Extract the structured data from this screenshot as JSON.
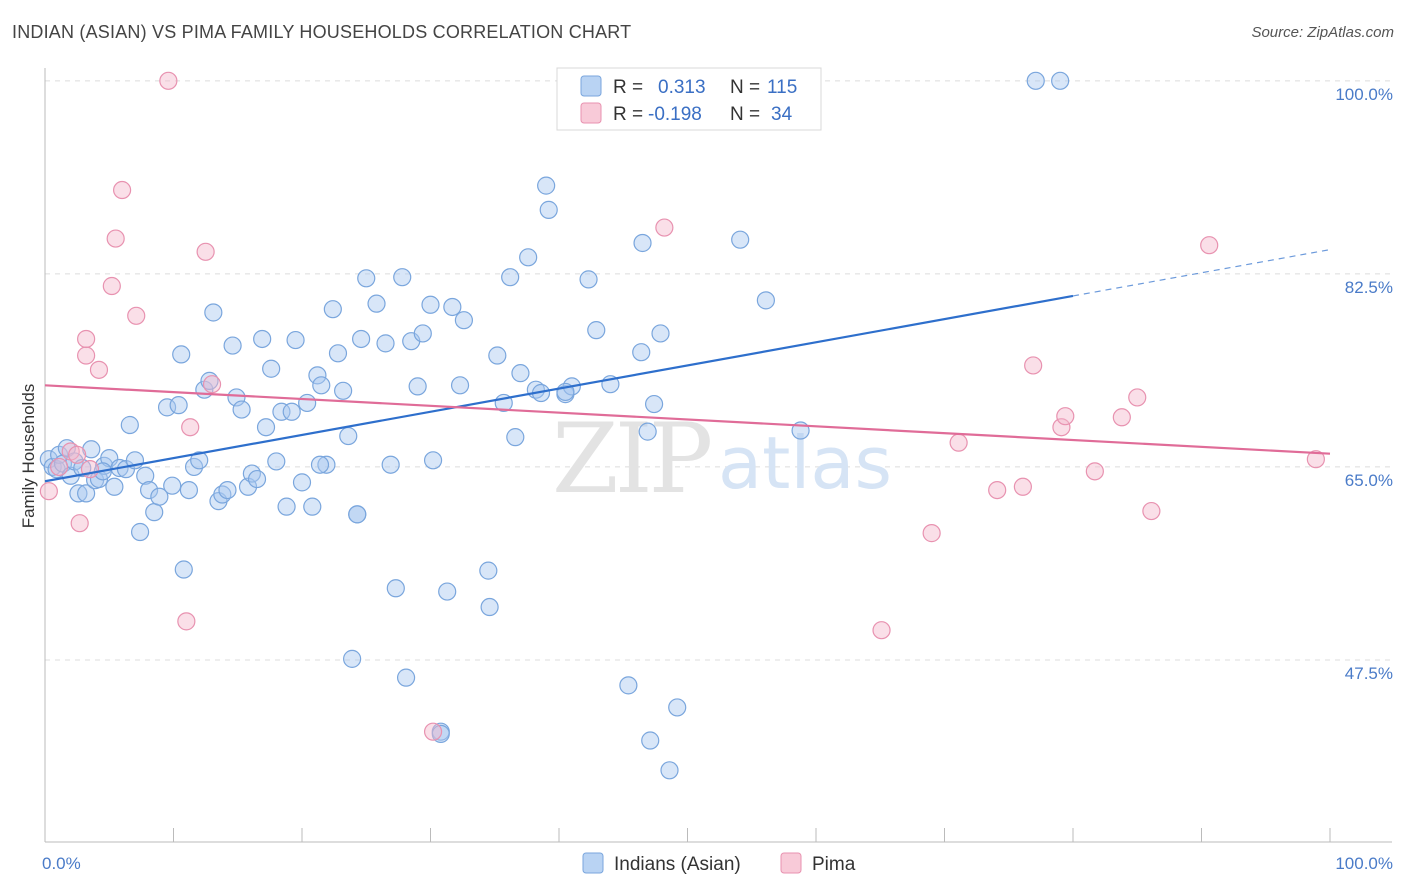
{
  "header": {
    "title": "INDIAN (ASIAN) VS PIMA FAMILY HOUSEHOLDS CORRELATION CHART",
    "source": "Source: ZipAtlas.com"
  },
  "watermark": {
    "zip": "ZIP",
    "atlas": "atlas"
  },
  "legend": {
    "r_label": "R =",
    "n_label": "N =",
    "rows": [
      {
        "r": "0.313",
        "n": "115",
        "color": "#a8c8f0"
      },
      {
        "r": "-0.198",
        "n": "34",
        "color": "#f4b8cb"
      }
    ]
  },
  "bottom_legend": [
    {
      "label": "Indians (Asian)",
      "color": "#a8c8f0"
    },
    {
      "label": "Pima",
      "color": "#f4b8cb"
    }
  ],
  "chart_data": {
    "type": "scatter",
    "title": "INDIAN (ASIAN) VS PIMA FAMILY HOUSEHOLDS CORRELATION CHART",
    "xlabel": "",
    "ylabel": "Family Households",
    "xlim": [
      0,
      100
    ],
    "ylim": [
      31,
      100.8
    ],
    "x_tick_labels": [
      "0.0%",
      "100.0%"
    ],
    "y_ticks": [
      {
        "value": 100.0,
        "label": "100.0%"
      },
      {
        "value": 82.5,
        "label": "82.5%"
      },
      {
        "value": 65.0,
        "label": "65.0%"
      },
      {
        "value": 47.5,
        "label": "47.5%"
      }
    ],
    "grid": true,
    "legend_position": "top-center",
    "series": [
      {
        "name": "Indians (Asian)",
        "color": "#a8c8f0",
        "stroke": "#7aa6dd",
        "line_color": "#2e6fcc",
        "trend": {
          "x0": 0,
          "y0": 63.7,
          "x1": 80,
          "y1": 80.5,
          "dash_to_x": 100,
          "dash_to_y": 84.7
        },
        "points": [
          [
            0.3,
            65.7
          ],
          [
            0.6,
            65.0
          ],
          [
            0.9,
            64.8
          ],
          [
            1.1,
            66.1
          ],
          [
            1.4,
            65.3
          ],
          [
            1.7,
            66.7
          ],
          [
            2.0,
            64.2
          ],
          [
            2.3,
            65.5
          ],
          [
            2.6,
            62.6
          ],
          [
            2.9,
            64.9
          ],
          [
            3.2,
            62.6
          ],
          [
            3.6,
            66.6
          ],
          [
            3.9,
            63.8
          ],
          [
            4.2,
            63.9
          ],
          [
            4.6,
            65.1
          ],
          [
            5.0,
            65.8
          ],
          [
            5.4,
            63.2
          ],
          [
            5.8,
            64.9
          ],
          [
            6.3,
            64.8
          ],
          [
            6.6,
            68.8
          ],
          [
            7.0,
            65.6
          ],
          [
            7.4,
            59.1
          ],
          [
            7.8,
            64.2
          ],
          [
            8.1,
            62.9
          ],
          [
            8.5,
            60.9
          ],
          [
            8.9,
            62.3
          ],
          [
            9.5,
            70.4
          ],
          [
            9.9,
            63.3
          ],
          [
            10.4,
            70.6
          ],
          [
            10.6,
            75.2
          ],
          [
            10.8,
            55.7
          ],
          [
            11.2,
            62.9
          ],
          [
            11.6,
            65.0
          ],
          [
            12.0,
            65.6
          ],
          [
            12.4,
            72.0
          ],
          [
            12.8,
            72.8
          ],
          [
            13.1,
            79.0
          ],
          [
            13.5,
            61.9
          ],
          [
            13.8,
            62.5
          ],
          [
            14.2,
            62.9
          ],
          [
            14.6,
            76.0
          ],
          [
            14.9,
            71.3
          ],
          [
            15.3,
            70.2
          ],
          [
            15.8,
            63.2
          ],
          [
            16.1,
            64.4
          ],
          [
            16.5,
            63.9
          ],
          [
            16.9,
            76.6
          ],
          [
            17.2,
            68.6
          ],
          [
            17.6,
            73.9
          ],
          [
            18.0,
            65.5
          ],
          [
            18.4,
            70.0
          ],
          [
            18.8,
            61.4
          ],
          [
            19.2,
            70.0
          ],
          [
            19.5,
            76.5
          ],
          [
            20.0,
            63.6
          ],
          [
            20.4,
            70.8
          ],
          [
            20.8,
            61.4
          ],
          [
            21.2,
            73.3
          ],
          [
            21.5,
            72.4
          ],
          [
            21.9,
            65.2
          ],
          [
            22.4,
            79.3
          ],
          [
            22.8,
            75.3
          ],
          [
            23.2,
            71.9
          ],
          [
            23.6,
            67.8
          ],
          [
            23.9,
            47.6
          ],
          [
            24.3,
            60.7
          ],
          [
            24.6,
            76.6
          ],
          [
            25.0,
            82.1
          ],
          [
            25.8,
            79.8
          ],
          [
            26.5,
            76.2
          ],
          [
            26.9,
            65.2
          ],
          [
            27.3,
            54.0
          ],
          [
            27.8,
            82.2
          ],
          [
            28.1,
            45.9
          ],
          [
            28.5,
            76.4
          ],
          [
            29.0,
            72.3
          ],
          [
            29.4,
            77.1
          ],
          [
            30.0,
            79.7
          ],
          [
            30.2,
            65.6
          ],
          [
            30.8,
            41.0
          ],
          [
            31.3,
            53.7
          ],
          [
            31.7,
            79.5
          ],
          [
            32.3,
            72.4
          ],
          [
            32.6,
            78.3
          ],
          [
            34.5,
            55.6
          ],
          [
            34.6,
            52.3
          ],
          [
            35.2,
            75.1
          ],
          [
            35.7,
            70.8
          ],
          [
            36.2,
            82.2
          ],
          [
            36.6,
            67.7
          ],
          [
            37.0,
            73.5
          ],
          [
            37.6,
            84.0
          ],
          [
            38.2,
            72.0
          ],
          [
            38.6,
            71.7
          ],
          [
            39.0,
            90.5
          ],
          [
            39.2,
            88.3
          ],
          [
            40.5,
            71.6
          ],
          [
            41.0,
            72.3
          ],
          [
            42.3,
            82.0
          ],
          [
            42.9,
            77.4
          ],
          [
            44.0,
            72.5
          ],
          [
            45.4,
            45.2
          ],
          [
            46.4,
            75.4
          ],
          [
            47.1,
            40.2
          ],
          [
            46.5,
            85.3
          ],
          [
            46.9,
            68.2
          ],
          [
            47.4,
            70.7
          ],
          [
            47.9,
            77.1
          ],
          [
            49.2,
            43.2
          ],
          [
            48.6,
            37.5
          ],
          [
            54.1,
            85.6
          ],
          [
            56.1,
            80.1
          ],
          [
            58.8,
            68.3
          ],
          [
            77.1,
            100.0
          ],
          [
            79.0,
            100.0
          ],
          [
            30.8,
            40.8
          ],
          [
            24.3,
            60.7
          ],
          [
            4.5,
            64.6
          ],
          [
            40.5,
            71.8
          ],
          [
            21.4,
            65.2
          ]
        ]
      },
      {
        "name": "Pima",
        "color": "#f4b8cb",
        "stroke": "#e892b0",
        "line_color": "#e06c98",
        "trend": {
          "x0": 0,
          "y0": 72.4,
          "x1": 100,
          "y1": 66.2
        },
        "points": [
          [
            0.3,
            62.8
          ],
          [
            1.1,
            65.0
          ],
          [
            2.0,
            66.4
          ],
          [
            2.7,
            59.9
          ],
          [
            3.2,
            75.1
          ],
          [
            3.5,
            64.8
          ],
          [
            4.2,
            73.8
          ],
          [
            5.2,
            81.4
          ],
          [
            5.5,
            85.7
          ],
          [
            6.0,
            90.1
          ],
          [
            7.1,
            78.7
          ],
          [
            9.6,
            100.0
          ],
          [
            11.0,
            51.0
          ],
          [
            11.3,
            68.6
          ],
          [
            12.5,
            84.5
          ],
          [
            13.0,
            72.5
          ],
          [
            30.2,
            41.0
          ],
          [
            48.2,
            86.7
          ],
          [
            65.1,
            50.2
          ],
          [
            69.0,
            59.0
          ],
          [
            71.1,
            67.2
          ],
          [
            74.1,
            62.9
          ],
          [
            76.1,
            63.2
          ],
          [
            76.9,
            74.2
          ],
          [
            79.1,
            68.6
          ],
          [
            79.4,
            69.6
          ],
          [
            81.7,
            64.6
          ],
          [
            83.8,
            69.5
          ],
          [
            85.0,
            71.3
          ],
          [
            86.1,
            61.0
          ],
          [
            90.6,
            85.1
          ],
          [
            98.9,
            65.7
          ],
          [
            2.5,
            66.1
          ],
          [
            3.2,
            76.6
          ]
        ]
      }
    ]
  }
}
